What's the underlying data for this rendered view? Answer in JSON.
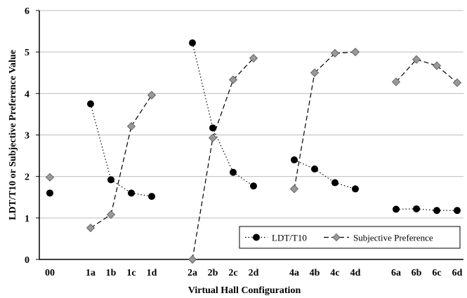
{
  "chart_data": {
    "type": "line",
    "title": "",
    "xlabel": "Virtual Hall Configuration",
    "ylabel": "LDT/T10 or Subjective Preference Value",
    "ylim": [
      0,
      6
    ],
    "yticks": [
      "0",
      "1",
      "2",
      "3",
      "4",
      "5",
      "6"
    ],
    "grid": "horizontal",
    "legend_position": "bottom-right",
    "categories": [
      "00",
      "1a",
      "1b",
      "1c",
      "1d",
      "2a",
      "2b",
      "2c",
      "2d",
      "4a",
      "4b",
      "4c",
      "4d",
      "6a",
      "6b",
      "6c",
      "6d"
    ],
    "groups": [
      [
        "00"
      ],
      [
        "1a",
        "1b",
        "1c",
        "1d"
      ],
      [
        "2a",
        "2b",
        "2c",
        "2d"
      ],
      [
        "4a",
        "4b",
        "4c",
        "4d"
      ],
      [
        "6a",
        "6b",
        "6c",
        "6d"
      ]
    ],
    "series": [
      {
        "name": "LDT/T10",
        "marker": "circle",
        "line": "dotted",
        "color": "#000000",
        "values": [
          1.6,
          3.75,
          1.92,
          1.6,
          1.52,
          5.22,
          3.17,
          2.1,
          1.77,
          2.4,
          2.18,
          1.85,
          1.7,
          1.21,
          1.22,
          1.18,
          1.18
        ]
      },
      {
        "name": "Subjective Preference",
        "marker": "diamond",
        "line": "dashed",
        "color": "#999999",
        "values": [
          1.98,
          0.76,
          1.08,
          3.21,
          3.96,
          0.0,
          2.93,
          4.33,
          4.85,
          1.7,
          4.5,
          4.97,
          5.0,
          4.28,
          4.82,
          4.67,
          4.26
        ]
      }
    ]
  }
}
